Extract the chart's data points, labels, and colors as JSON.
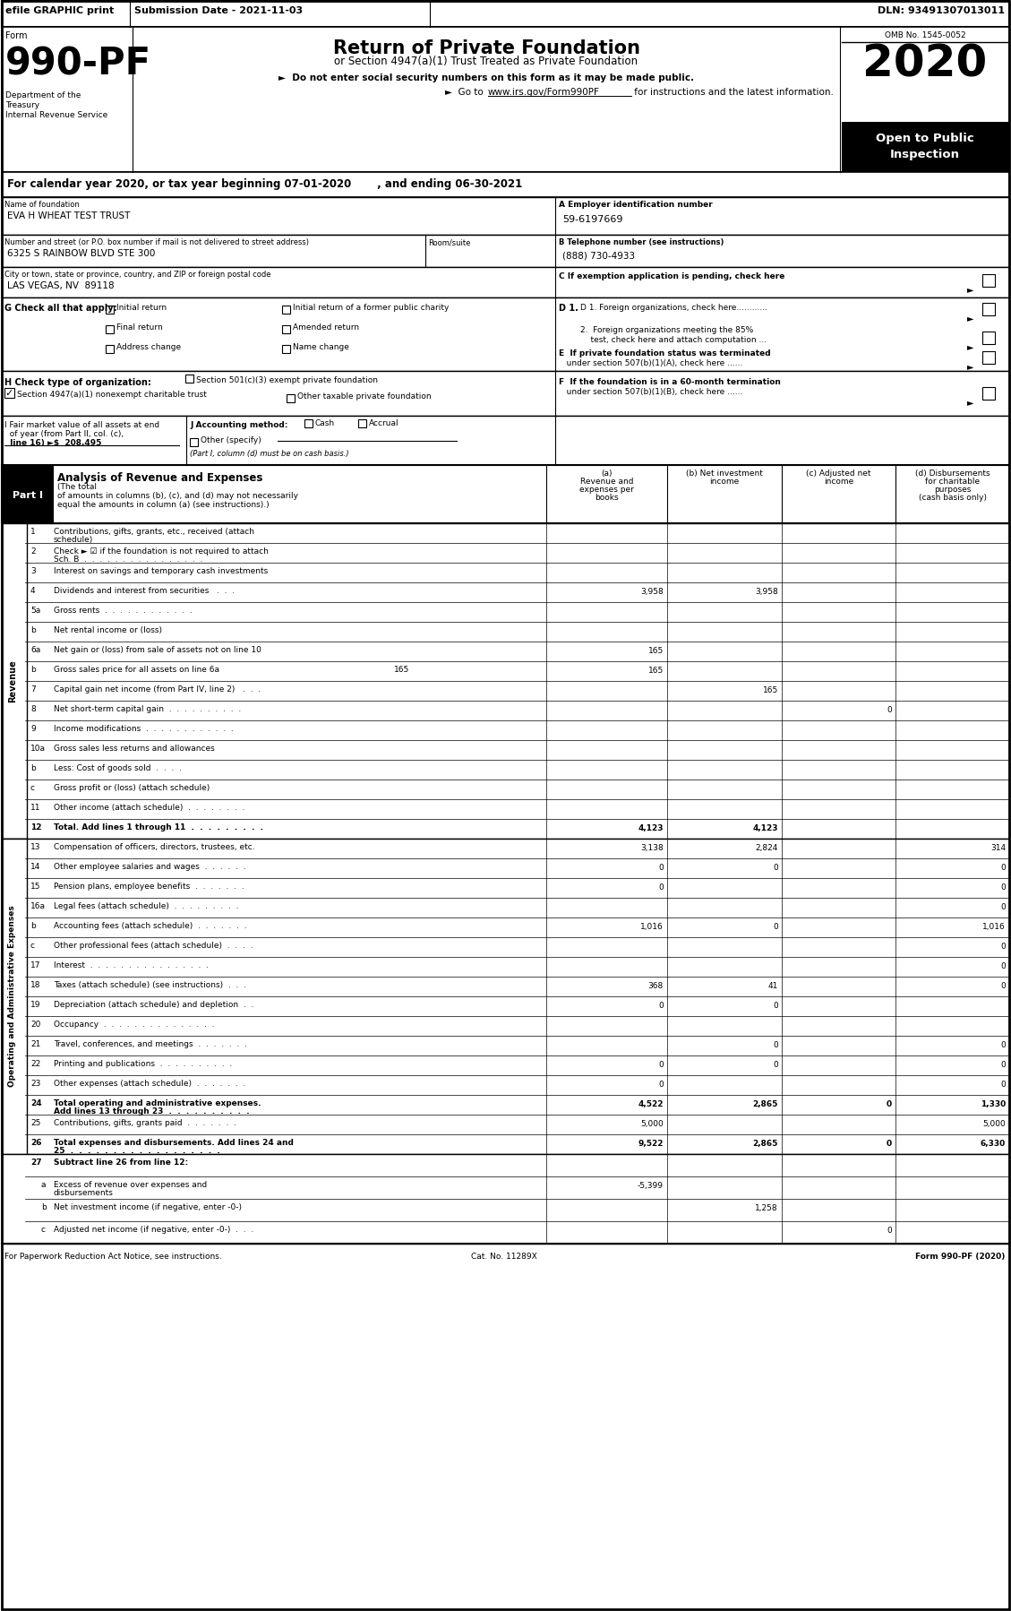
{
  "header_bar": {
    "text_left": "efile GRAPHIC print",
    "text_center": "Submission Date - 2021-11-03",
    "text_right": "DLN: 93491307013011"
  },
  "form_number": "990-PF",
  "form_title": "Return of Private Foundation",
  "form_subtitle1": "or Section 4947(a)(1) Trust Treated as Private Foundation",
  "form_subtitle2": "►  Do not enter social security numbers on this form as it may be made public.",
  "form_subtitle3_pre": "►  Go to ",
  "form_subtitle3_url": "www.irs.gov/Form990PF",
  "form_subtitle3_post": " for instructions and the latest information.",
  "year": "2020",
  "open_text1": "Open to Public",
  "open_text2": "Inspection",
  "omb": "OMB No. 1545-0052",
  "dept1": "Department of the",
  "dept2": "Treasury",
  "dept3": "Internal Revenue Service",
  "calendar_line": "For calendar year 2020, or tax year beginning 07-01-2020       , and ending 06-30-2021",
  "foundation_name_label": "Name of foundation",
  "foundation_name": "EVA H WHEAT TEST TRUST",
  "ein_label": "A Employer identification number",
  "ein": "59-6197669",
  "address_label": "Number and street (or P.O. box number if mail is not delivered to street address)",
  "address": "6325 S RAINBOW BLVD STE 300",
  "room_label": "Room/suite",
  "phone_label": "B Telephone number (see instructions)",
  "phone": "(888) 730-4933",
  "city_label": "City or town, state or province, country, and ZIP or foreign postal code",
  "city": "LAS VEGAS, NV  89118",
  "c_label": "C If exemption application is pending, check here",
  "g_label": "G Check all that apply:",
  "g_options": [
    "Initial return",
    "Initial return of a former public charity",
    "Final return",
    "Amended return",
    "Address change",
    "Name change"
  ],
  "d1_label": "D 1. Foreign organizations, check here............",
  "d2_line1": "2.  Foreign organizations meeting the 85%",
  "d2_line2": "    test, check here and attach computation ...",
  "e_line1": "E  If private foundation status was terminated",
  "e_line2": "   under section 507(b)(1)(A), check here ......",
  "h_label": "H Check type of organization:",
  "h_option1": "Section 501(c)(3) exempt private foundation",
  "h_option2": "Section 4947(a)(1) nonexempt charitable trust",
  "h_option3": "Other taxable private foundation",
  "i_line1": "I Fair market value of all assets at end",
  "i_line2": "  of year (from Part II, col. (c),",
  "i_line3": "  line 16) ►$  208,495",
  "j_label": "J Accounting method:",
  "j_cash": "Cash",
  "j_accrual": "Accrual",
  "j_other": "Other (specify)",
  "j_note": "(Part I, column (d) must be on cash basis.)",
  "f_line1": "F  If the foundation is in a 60-month termination",
  "f_line2": "   under section 507(b)(1)(B), check here ......",
  "part1_title": "Part I",
  "part1_desc": "Analysis of Revenue and Expenses",
  "part1_sub1": "(The total",
  "part1_sub2": "of amounts in columns (b), (c), and (d) may not necessarily",
  "part1_sub3": "equal the amounts in column (a) (see instructions).)",
  "col_a1": "(a)",
  "col_a2": "Revenue and",
  "col_a3": "expenses per",
  "col_a4": "books",
  "col_b1": "(b) Net investment",
  "col_b2": "income",
  "col_c1": "(c) Adjusted net",
  "col_c2": "income",
  "col_d1": "(d) Disbursements",
  "col_d2": "for charitable",
  "col_d3": "purposes",
  "col_d4": "(cash basis only)",
  "revenue_rows": [
    {
      "num": "1",
      "label": "Contributions, gifts, grants, etc., received (attach",
      "label2": "schedule)",
      "a": "",
      "b": "",
      "c": "",
      "d": ""
    },
    {
      "num": "2",
      "label": "Check ► ☑ if the foundation is not required to attach",
      "label2": "Sch. B  .  .  .  .  .  .  .  .  .  .  .  .  .  .  .  .",
      "a": "",
      "b": "",
      "c": "",
      "d": ""
    },
    {
      "num": "3",
      "label": "Interest on savings and temporary cash investments",
      "label2": "",
      "a": "",
      "b": "",
      "c": "",
      "d": ""
    },
    {
      "num": "4",
      "label": "Dividends and interest from securities   .  .  .",
      "label2": "",
      "a": "3,958",
      "b": "3,958",
      "c": "",
      "d": ""
    },
    {
      "num": "5a",
      "label": "Gross rents  .  .  .  .  .  .  .  .  .  .  .  .",
      "label2": "",
      "a": "",
      "b": "",
      "c": "",
      "d": ""
    },
    {
      "num": "b",
      "label": "Net rental income or (loss)",
      "label2": "",
      "a": "",
      "b": "",
      "c": "",
      "d": ""
    },
    {
      "num": "6a",
      "label": "Net gain or (loss) from sale of assets not on line 10",
      "label2": "",
      "a": "165",
      "b": "",
      "c": "",
      "d": ""
    },
    {
      "num": "b",
      "label": "Gross sales price for all assets on line 6a",
      "label2": "",
      "a": "165",
      "b": "",
      "c": "",
      "d": "",
      "inline_val": "165"
    },
    {
      "num": "7",
      "label": "Capital gain net income (from Part IV, line 2)   .  .  .",
      "label2": "",
      "a": "",
      "b": "165",
      "c": "",
      "d": ""
    },
    {
      "num": "8",
      "label": "Net short-term capital gain  .  .  .  .  .  .  .  .  .  .",
      "label2": "",
      "a": "",
      "b": "",
      "c": "0",
      "d": ""
    },
    {
      "num": "9",
      "label": "Income modifications  .  .  .  .  .  .  .  .  .  .  .  .",
      "label2": "",
      "a": "",
      "b": "",
      "c": "",
      "d": ""
    },
    {
      "num": "10a",
      "label": "Gross sales less returns and allowances",
      "label2": "",
      "a": "",
      "b": "",
      "c": "",
      "d": ""
    },
    {
      "num": "b",
      "label": "Less: Cost of goods sold  .  .  .  .",
      "label2": "",
      "a": "",
      "b": "",
      "c": "",
      "d": ""
    },
    {
      "num": "c",
      "label": "Gross profit or (loss) (attach schedule)",
      "label2": "",
      "a": "",
      "b": "",
      "c": "",
      "d": ""
    },
    {
      "num": "11",
      "label": "Other income (attach schedule)  .  .  .  .  .  .  .  .",
      "label2": "",
      "a": "",
      "b": "",
      "c": "",
      "d": ""
    },
    {
      "num": "12",
      "label": "Total. Add lines 1 through 11  .  .  .  .  .  .  .  .  .",
      "label2": "",
      "a": "4,123",
      "b": "4,123",
      "c": "",
      "d": "",
      "bold": true
    }
  ],
  "expense_rows": [
    {
      "num": "13",
      "label": "Compensation of officers, directors, trustees, etc.",
      "label2": "",
      "a": "3,138",
      "b": "2,824",
      "c": "",
      "d": "314"
    },
    {
      "num": "14",
      "label": "Other employee salaries and wages  .  .  .  .  .  .",
      "label2": "",
      "a": "0",
      "b": "0",
      "c": "",
      "d": "0"
    },
    {
      "num": "15",
      "label": "Pension plans, employee benefits  .  .  .  .  .  .  .",
      "label2": "",
      "a": "0",
      "b": "",
      "c": "",
      "d": "0"
    },
    {
      "num": "16a",
      "label": "Legal fees (attach schedule)  .  .  .  .  .  .  .  .  .",
      "label2": "",
      "a": "",
      "b": "",
      "c": "",
      "d": "0"
    },
    {
      "num": "b",
      "label": "Accounting fees (attach schedule)  .  .  .  .  .  .  .",
      "label2": "",
      "a": "1,016",
      "b": "0",
      "c": "",
      "d": "1,016"
    },
    {
      "num": "c",
      "label": "Other professional fees (attach schedule)  .  .  .  .",
      "label2": "",
      "a": "",
      "b": "",
      "c": "",
      "d": "0"
    },
    {
      "num": "17",
      "label": "Interest  .  .  .  .  .  .  .  .  .  .  .  .  .  .  .  .",
      "label2": "",
      "a": "",
      "b": "",
      "c": "",
      "d": "0"
    },
    {
      "num": "18",
      "label": "Taxes (attach schedule) (see instructions)  .  .  .",
      "label2": "",
      "a": "368",
      "b": "41",
      "c": "",
      "d": "0"
    },
    {
      "num": "19",
      "label": "Depreciation (attach schedule) and depletion  .  .",
      "label2": "",
      "a": "0",
      "b": "0",
      "c": "",
      "d": ""
    },
    {
      "num": "20",
      "label": "Occupancy  .  .  .  .  .  .  .  .  .  .  .  .  .  .  .",
      "label2": "",
      "a": "",
      "b": "",
      "c": "",
      "d": ""
    },
    {
      "num": "21",
      "label": "Travel, conferences, and meetings  .  .  .  .  .  .  .",
      "label2": "",
      "a": "",
      "b": "0",
      "c": "",
      "d": "0"
    },
    {
      "num": "22",
      "label": "Printing and publications  .  .  .  .  .  .  .  .  .  .",
      "label2": "",
      "a": "0",
      "b": "0",
      "c": "",
      "d": "0"
    },
    {
      "num": "23",
      "label": "Other expenses (attach schedule)  .  .  .  .  .  .  .",
      "label2": "",
      "a": "0",
      "b": "",
      "c": "",
      "d": "0"
    },
    {
      "num": "24",
      "label": "Total operating and administrative expenses.",
      "label2": "Add lines 13 through 23  .  .  .  .  .  .  .  .  .  .",
      "a": "4,522",
      "b": "2,865",
      "c": "0",
      "d": "1,330",
      "bold": true
    },
    {
      "num": "25",
      "label": "Contributions, gifts, grants paid  .  .  .  .  .  .  .",
      "label2": "",
      "a": "5,000",
      "b": "",
      "c": "",
      "d": "5,000"
    },
    {
      "num": "26",
      "label": "Total expenses and disbursements. Add lines 24 and",
      "label2": "25  .  .  .  .  .  .  .  .  .  .  .  .  .  .  .  .  .  .",
      "a": "9,522",
      "b": "2,865",
      "c": "0",
      "d": "6,330",
      "bold": true
    }
  ],
  "bottom_rows": [
    {
      "num": "27",
      "label": "Subtract line 26 from line 12:",
      "label2": "",
      "a": "",
      "b": "",
      "c": "",
      "d": "",
      "bold": true,
      "is_header": true
    },
    {
      "num": "a",
      "label": "Excess of revenue over expenses and",
      "label2": "disbursements",
      "a": "-5,399",
      "b": "",
      "c": "",
      "d": ""
    },
    {
      "num": "b",
      "label": "Net investment income (if negative, enter -0-)",
      "label2": "",
      "a": "",
      "b": "1,258",
      "c": "",
      "d": ""
    },
    {
      "num": "c",
      "label": "Adjusted net income (if negative, enter -0-)  .  .  .",
      "label2": "",
      "a": "",
      "b": "",
      "c": "0",
      "d": ""
    }
  ],
  "footer_left": "For Paperwork Reduction Act Notice, see instructions.",
  "footer_cat": "Cat. No. 11289X",
  "footer_right": "Form 990-PF (2020)"
}
